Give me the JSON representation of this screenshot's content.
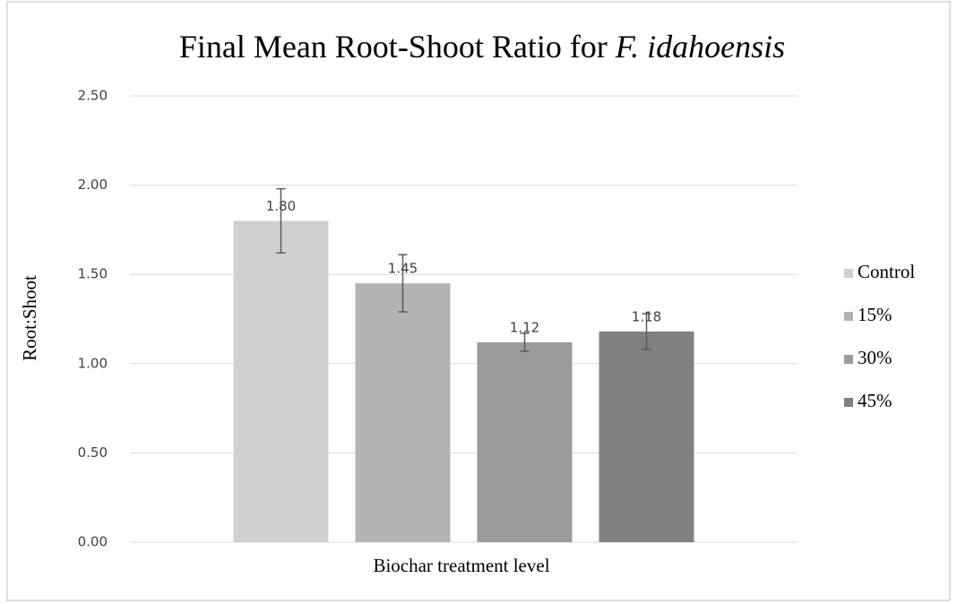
{
  "chart_data": {
    "type": "bar",
    "title": {
      "text": "Final Mean Root-Shoot Ratio for",
      "species": "F. idahoensis"
    },
    "x_label": "Biochar treatment level",
    "y_label": "Root:Shoot",
    "categories": [
      null
    ],
    "series": [
      {
        "name": "Control",
        "color": "#d0d0d0",
        "values": [
          1.8
        ],
        "value_labels": [
          "1.80"
        ],
        "errors": [
          0.18
        ]
      },
      {
        "name": "15%",
        "color": "#b3b3b3",
        "values": [
          1.45
        ],
        "value_labels": [
          "1.45"
        ],
        "errors": [
          0.16
        ]
      },
      {
        "name": "30%",
        "color": "#9b9b9b",
        "values": [
          1.12
        ],
        "value_labels": [
          "1.12"
        ],
        "errors": [
          0.05
        ]
      },
      {
        "name": "45%",
        "color": "#808080",
        "values": [
          1.18
        ],
        "value_labels": [
          "1.18"
        ],
        "errors": [
          0.1
        ]
      }
    ],
    "ylim": [
      0,
      2.5
    ],
    "yticks": [
      {
        "value": 0,
        "label": "0.00"
      },
      {
        "value": 0.5,
        "label": "0.50"
      },
      {
        "value": 1,
        "label": "1.00"
      },
      {
        "value": 1.5,
        "label": "1.50"
      },
      {
        "value": 2,
        "label": "2.00"
      },
      {
        "value": 2.5,
        "label": "2.50"
      }
    ],
    "grid": true,
    "legend": "right"
  }
}
